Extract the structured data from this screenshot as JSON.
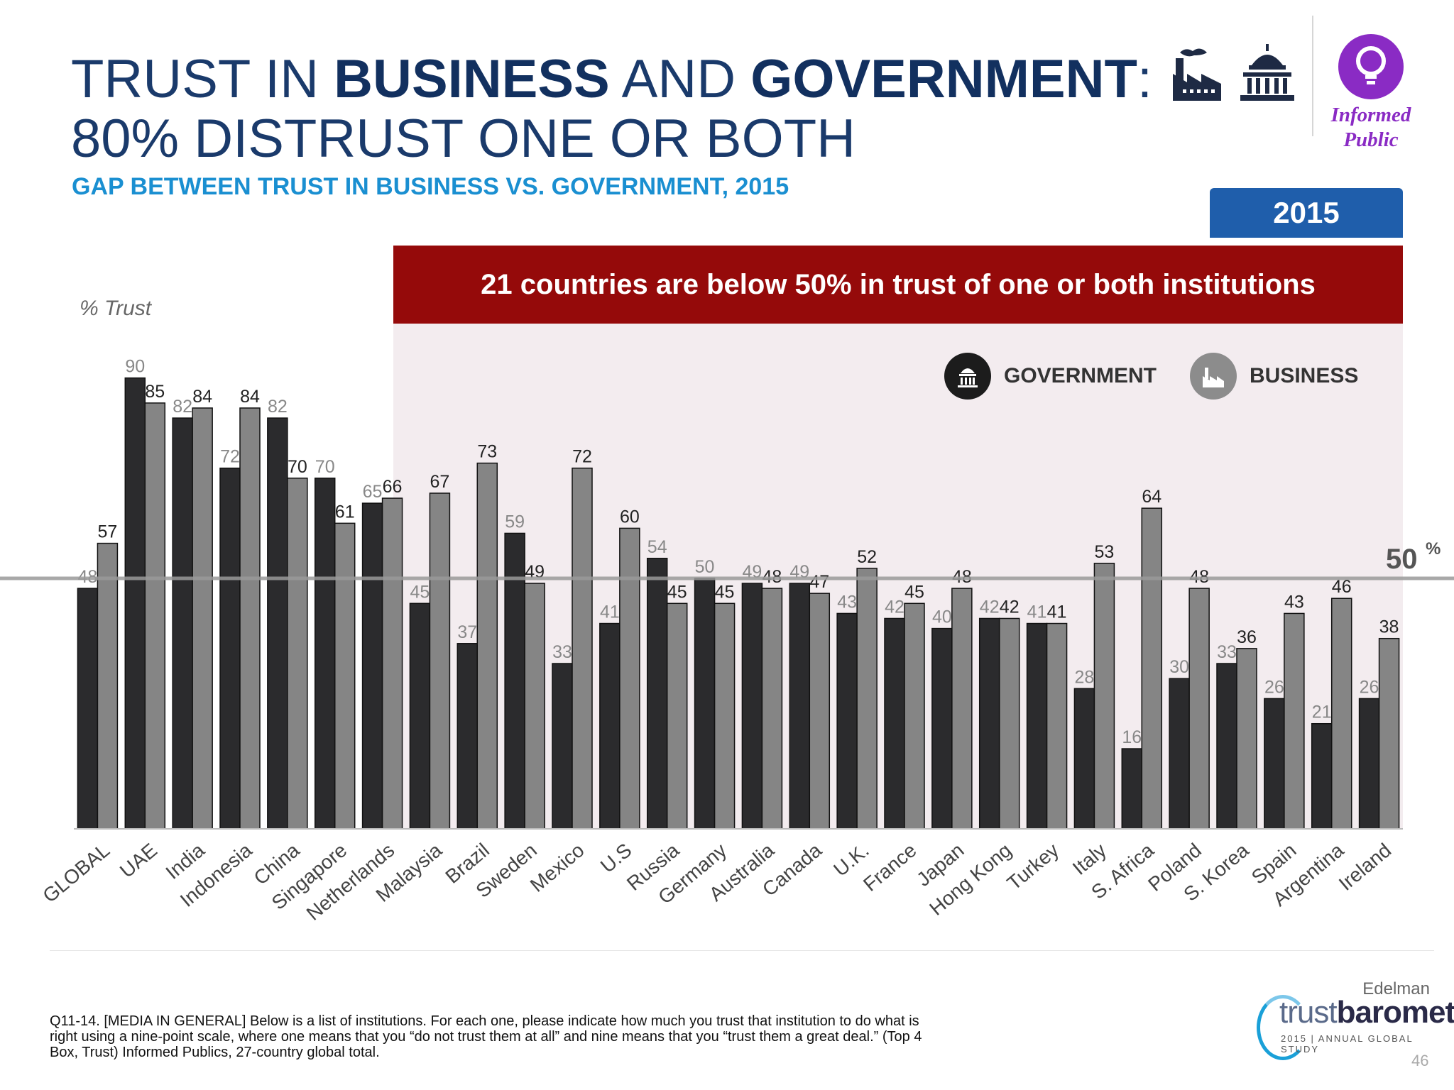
{
  "title": {
    "line1_part1": "TRUST IN ",
    "line1_bold1": "BUSINESS",
    "line1_part2": " AND ",
    "line1_bold2": "GOVERNMENT",
    "line1_part3": ":",
    "line2": "80% DISTRUST ONE OR BOTH"
  },
  "subtitle": "GAP BETWEEN TRUST IN BUSINESS VS. GOVERNMENT, 2015",
  "badge": {
    "line1": "Informed",
    "line2": "Public",
    "color": "#8a2bc4",
    "icon": "lightbulb-icon"
  },
  "header_icons": [
    "factory-icon",
    "capitol-icon"
  ],
  "year_tab": "2015",
  "banner": "21 countries are below 50% in trust of one or both institutions",
  "footnote": "Q11-14. [MEDIA IN GENERAL] Below is a list of institutions. For each one, please indicate how much you trust that institution to do what is right using a nine-point scale, where one means that you “do not trust them at all” and nine means that you “trust them a great deal.” (Top 4 Box, Trust) Informed Publics, 27-country global total.",
  "brand": {
    "company": "Edelman",
    "product_light": "trust",
    "product_bold": "barometer",
    "tagline": "2015 | ANNUAL GLOBAL STUDY"
  },
  "page_number": "46",
  "chart_data": {
    "type": "bar",
    "ylabel": "% Trust",
    "ylim": [
      0,
      100
    ],
    "reference_line": {
      "value": 50,
      "label": "50",
      "label_suffix": "%"
    },
    "legend_placement": "top-right",
    "categories": [
      "GLOBAL",
      "UAE",
      "India",
      "Indonesia",
      "China",
      "Singapore",
      "Netherlands",
      "Malaysia",
      "Brazil",
      "Sweden",
      "Mexico",
      "U.S",
      "Russia",
      "Germany",
      "Australia",
      "Canada",
      "U.K.",
      "France",
      "Japan",
      "Hong Kong",
      "Turkey",
      "Italy",
      "S. Africa",
      "Poland",
      "S. Korea",
      "Spain",
      "Argentina",
      "Ireland"
    ],
    "series": [
      {
        "name": "GOVERNMENT",
        "color": "#2b2b2d",
        "label_color": "#888888",
        "values": [
          48,
          90,
          82,
          72,
          82,
          70,
          65,
          45,
          37,
          59,
          33,
          41,
          54,
          50,
          49,
          49,
          43,
          42,
          40,
          42,
          41,
          28,
          16,
          30,
          33,
          26,
          21,
          26
        ]
      },
      {
        "name": "BUSINESS",
        "color": "#858585",
        "label_color": "#222222",
        "values": [
          57,
          85,
          84,
          84,
          70,
          61,
          66,
          67,
          73,
          49,
          72,
          60,
          45,
          45,
          48,
          47,
          52,
          45,
          48,
          42,
          41,
          53,
          64,
          48,
          36,
          43,
          46,
          38
        ]
      }
    ]
  }
}
